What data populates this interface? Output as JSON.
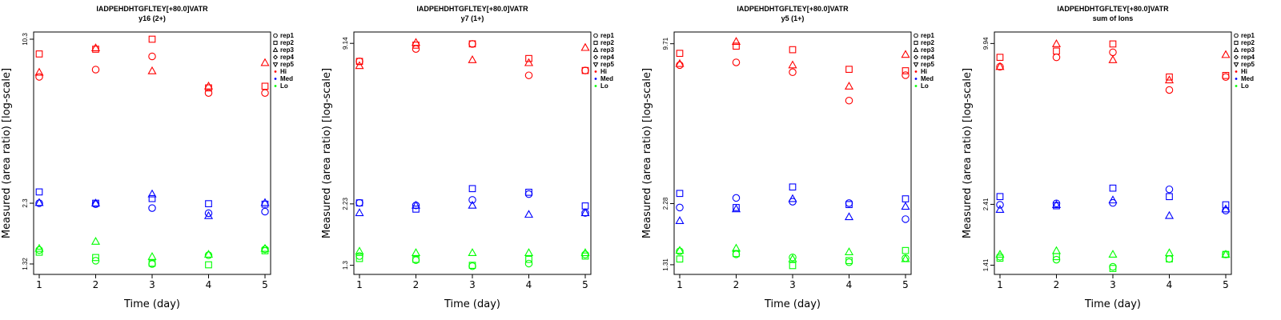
{
  "colors": {
    "Hi": "#ff0000",
    "Med": "#0000ff",
    "Lo": "#00ff00"
  },
  "legend": {
    "placement": "right",
    "reps": [
      {
        "label": "rep1",
        "shape": "circle"
      },
      {
        "label": "rep2",
        "shape": "square"
      },
      {
        "label": "rep3",
        "shape": "triangle-up"
      },
      {
        "label": "rep4",
        "shape": "diamond"
      },
      {
        "label": "rep5",
        "shape": "triangle-down"
      }
    ],
    "levels": [
      {
        "label": "Hi",
        "color": "#ff0000"
      },
      {
        "label": "Med",
        "color": "#0000ff"
      },
      {
        "label": "Lo",
        "color": "#00ff00"
      }
    ]
  },
  "chart_data": [
    {
      "type": "scatter",
      "title": "IADPEHDHTGFLTEY[+80.0]VATR",
      "subtitle": "y16 (2+)",
      "xlabel": "Time (day)",
      "ylabel": "Measured (area ratio) [log-scale]",
      "xticks": [
        1,
        2,
        3,
        4,
        5
      ],
      "yticks": [
        1.32,
        2.3,
        10.3
      ],
      "ylim": [
        1.2,
        11.0
      ],
      "log_y": true,
      "grid": false,
      "x": [
        1,
        2,
        3,
        4,
        5
      ],
      "series": [
        {
          "level": "Hi",
          "rep": "rep1",
          "values": [
            7.3,
            7.8,
            8.8,
            6.3,
            6.3
          ]
        },
        {
          "level": "Hi",
          "rep": "rep2",
          "values": [
            9.0,
            9.4,
            10.3,
            6.6,
            6.7
          ]
        },
        {
          "level": "Hi",
          "rep": "rep3",
          "values": [
            7.6,
            9.5,
            7.7,
            6.7,
            8.3
          ]
        },
        {
          "level": "Med",
          "rep": "rep1",
          "values": [
            2.3,
            2.28,
            2.2,
            2.1,
            2.13
          ]
        },
        {
          "level": "Med",
          "rep": "rep2",
          "values": [
            2.55,
            2.3,
            2.4,
            2.29,
            2.28
          ]
        },
        {
          "level": "Med",
          "rep": "rep3",
          "values": [
            2.31,
            2.3,
            2.5,
            2.05,
            2.31
          ]
        },
        {
          "level": "Lo",
          "rep": "rep1",
          "values": [
            1.5,
            1.36,
            1.32,
            1.43,
            1.51
          ]
        },
        {
          "level": "Lo",
          "rep": "rep2",
          "values": [
            1.47,
            1.4,
            1.33,
            1.31,
            1.49
          ]
        },
        {
          "level": "Lo",
          "rep": "rep3",
          "values": [
            1.52,
            1.62,
            1.41,
            1.44,
            1.52
          ]
        }
      ]
    },
    {
      "type": "scatter",
      "title": "IADPEHDHTGFLTEY[+80.0]VATR",
      "subtitle": "y7 (1+)",
      "xlabel": "Time (day)",
      "ylabel": "Measured (area ratio) [log-scale]",
      "xticks": [
        1,
        2,
        3,
        4,
        5
      ],
      "yticks": [
        1.3,
        2.23,
        9.14
      ],
      "ylim": [
        1.2,
        10.1
      ],
      "log_y": true,
      "grid": false,
      "x": [
        1,
        2,
        3,
        4,
        5
      ],
      "series": [
        {
          "level": "Hi",
          "rep": "rep1",
          "values": [
            7.8,
            8.7,
            9.1,
            6.9,
            7.2
          ]
        },
        {
          "level": "Hi",
          "rep": "rep2",
          "values": [
            7.8,
            9.0,
            9.1,
            8.0,
            7.2
          ]
        },
        {
          "level": "Hi",
          "rep": "rep3",
          "values": [
            7.5,
            9.2,
            7.9,
            7.7,
            8.8
          ]
        },
        {
          "level": "Med",
          "rep": "rep1",
          "values": [
            2.25,
            2.2,
            2.31,
            2.43,
            2.06
          ]
        },
        {
          "level": "Med",
          "rep": "rep2",
          "values": [
            2.25,
            2.13,
            2.55,
            2.47,
            2.19
          ]
        },
        {
          "level": "Med",
          "rep": "rep3",
          "values": [
            2.06,
            2.2,
            2.2,
            2.03,
            2.06
          ]
        },
        {
          "level": "Lo",
          "rep": "rep1",
          "values": [
            1.41,
            1.36,
            1.29,
            1.32,
            1.43
          ]
        },
        {
          "level": "Lo",
          "rep": "rep2",
          "values": [
            1.38,
            1.37,
            1.3,
            1.37,
            1.41
          ]
        },
        {
          "level": "Lo",
          "rep": "rep3",
          "values": [
            1.47,
            1.45,
            1.45,
            1.45,
            1.45
          ]
        }
      ]
    },
    {
      "type": "scatter",
      "title": "IADPEHDHTGFLTEY[+80.0]VATR",
      "subtitle": "y5 (1+)",
      "xlabel": "Time (day)",
      "ylabel": "Measured (area ratio) [log-scale]",
      "xticks": [
        1,
        2,
        3,
        4,
        5
      ],
      "yticks": [
        1.31,
        2.28,
        9.71
      ],
      "ylim": [
        1.2,
        10.8
      ],
      "log_y": true,
      "grid": false,
      "x": [
        1,
        2,
        3,
        4,
        5
      ],
      "series": [
        {
          "level": "Hi",
          "rep": "rep1",
          "values": [
            8.0,
            8.2,
            7.5,
            5.8,
            7.3
          ]
        },
        {
          "level": "Hi",
          "rep": "rep2",
          "values": [
            8.9,
            9.5,
            9.2,
            7.7,
            7.6
          ]
        },
        {
          "level": "Hi",
          "rep": "rep3",
          "values": [
            8.1,
            9.9,
            8.0,
            6.6,
            8.8
          ]
        },
        {
          "level": "Med",
          "rep": "rep1",
          "values": [
            2.2,
            2.4,
            2.32,
            2.29,
            1.98
          ]
        },
        {
          "level": "Med",
          "rep": "rep2",
          "values": [
            2.5,
            2.2,
            2.65,
            2.26,
            2.38
          ]
        },
        {
          "level": "Med",
          "rep": "rep3",
          "values": [
            1.95,
            2.17,
            2.38,
            2.02,
            2.22
          ]
        },
        {
          "level": "Lo",
          "rep": "rep1",
          "values": [
            1.48,
            1.44,
            1.4,
            1.34,
            1.39
          ]
        },
        {
          "level": "Lo",
          "rep": "rep2",
          "values": [
            1.38,
            1.45,
            1.3,
            1.36,
            1.49
          ]
        },
        {
          "level": "Lo",
          "rep": "rep3",
          "values": [
            1.49,
            1.52,
            1.38,
            1.47,
            1.38
          ]
        }
      ]
    },
    {
      "type": "scatter",
      "title": "IADPEHDHTGFLTEY[+80.0]VATR",
      "subtitle": "sum of Ions",
      "xlabel": "Time (day)",
      "ylabel": "Measured (area ratio) [log-scale]",
      "xticks": [
        1,
        2,
        3,
        4,
        5
      ],
      "yticks": [
        1.41,
        2.41,
        9.94
      ],
      "ylim": [
        1.3,
        11.0
      ],
      "log_y": true,
      "grid": false,
      "x": [
        1,
        2,
        3,
        4,
        5
      ],
      "series": [
        {
          "level": "Hi",
          "rep": "rep1",
          "values": [
            8.1,
            8.8,
            9.2,
            6.6,
            7.4
          ]
        },
        {
          "level": "Hi",
          "rep": "rep2",
          "values": [
            8.8,
            9.3,
            9.9,
            7.4,
            7.5
          ]
        },
        {
          "level": "Hi",
          "rep": "rep3",
          "values": [
            8.1,
            9.9,
            8.6,
            7.2,
            9.0
          ]
        },
        {
          "level": "Med",
          "rep": "rep1",
          "values": [
            2.4,
            2.43,
            2.44,
            2.75,
            2.28
          ]
        },
        {
          "level": "Med",
          "rep": "rep2",
          "values": [
            2.58,
            2.38,
            2.78,
            2.58,
            2.4
          ]
        },
        {
          "level": "Med",
          "rep": "rep3",
          "values": [
            2.3,
            2.4,
            2.5,
            2.18,
            2.31
          ]
        },
        {
          "level": "Lo",
          "rep": "rep1",
          "values": [
            1.52,
            1.48,
            1.39,
            1.49,
            1.55
          ]
        },
        {
          "level": "Lo",
          "rep": "rep2",
          "values": [
            1.5,
            1.52,
            1.37,
            1.49,
            1.55
          ]
        },
        {
          "level": "Lo",
          "rep": "rep3",
          "values": [
            1.55,
            1.6,
            1.55,
            1.57,
            1.55
          ]
        }
      ]
    }
  ]
}
